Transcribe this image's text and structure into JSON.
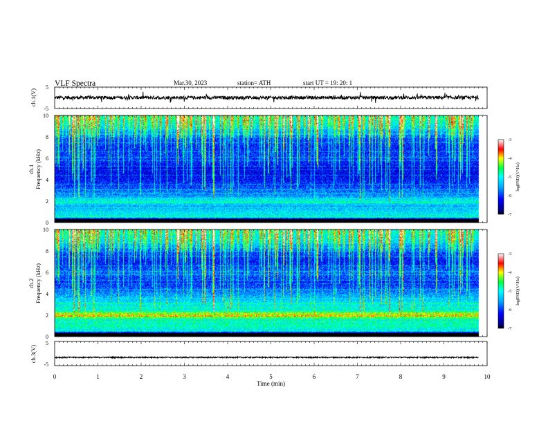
{
  "header": {
    "title": "VLF  Spectra",
    "date": "Mar.30, 2023",
    "station": "station= ATH",
    "start": "start  UT  =    19: 20: 1"
  },
  "chart_data": [
    {
      "id": "ch1-waveform",
      "type": "line",
      "ylabel": "ch.1(V)",
      "ylim": [
        -5,
        5
      ],
      "y_ticks": [
        "5",
        "-5"
      ],
      "x_range_min": [
        0,
        9.8
      ],
      "baseline_v": 0.1,
      "noise_amplitude_v": 0.8,
      "line_color": "#000000"
    },
    {
      "id": "ch1-spectrogram",
      "type": "heatmap",
      "ylabel_channel": "ch.1",
      "ylabel": "Frequency  (kHz)",
      "ylim": [
        0,
        10
      ],
      "y_ticks": [
        "0",
        "2",
        "4",
        "6",
        "8",
        "10"
      ],
      "x_range_min": [
        0,
        9.8
      ],
      "colorbar": {
        "label": "log(PSD)(V²/Hz)",
        "ticks": [
          "-3",
          "-4",
          "-5",
          "-6",
          "-7"
        ],
        "range": [
          -7,
          -3
        ]
      },
      "psd_profile": [
        {
          "f_khz": 0.0,
          "log_psd": -7.0
        },
        {
          "f_khz": 0.3,
          "log_psd": -6.8
        },
        {
          "f_khz": 0.5,
          "log_psd": -5.0
        },
        {
          "f_khz": 1.0,
          "log_psd": -5.2
        },
        {
          "f_khz": 1.5,
          "log_psd": -5.5
        },
        {
          "f_khz": 2.0,
          "log_psd": -5.0
        },
        {
          "f_khz": 2.5,
          "log_psd": -5.6
        },
        {
          "f_khz": 3.0,
          "log_psd": -5.8
        },
        {
          "f_khz": 4.0,
          "log_psd": -6.2
        },
        {
          "f_khz": 5.0,
          "log_psd": -6.3
        },
        {
          "f_khz": 6.0,
          "log_psd": -6.0
        },
        {
          "f_khz": 7.0,
          "log_psd": -6.1
        },
        {
          "f_khz": 8.0,
          "log_psd": -5.9
        },
        {
          "f_khz": 9.0,
          "log_psd": -5.2
        },
        {
          "f_khz": 10.0,
          "log_psd": -4.8
        }
      ]
    },
    {
      "id": "ch2-spectrogram",
      "type": "heatmap",
      "ylabel_channel": "ch.2",
      "ylabel": "Frequency  (kHz)",
      "ylim": [
        0,
        10
      ],
      "y_ticks": [
        "0",
        "2",
        "4",
        "6",
        "8",
        "10"
      ],
      "x_range_min": [
        0,
        9.8
      ],
      "colorbar": {
        "label": "log(PSD)(V²/Hz)",
        "ticks": [
          "-3",
          "-4",
          "-5",
          "-6",
          "-7"
        ],
        "range": [
          -7,
          -3
        ]
      },
      "psd_profile": [
        {
          "f_khz": 0.0,
          "log_psd": -7.0
        },
        {
          "f_khz": 0.3,
          "log_psd": -6.8
        },
        {
          "f_khz": 0.5,
          "log_psd": -5.2
        },
        {
          "f_khz": 1.0,
          "log_psd": -4.8
        },
        {
          "f_khz": 1.5,
          "log_psd": -5.0
        },
        {
          "f_khz": 2.0,
          "log_psd": -4.0
        },
        {
          "f_khz": 2.5,
          "log_psd": -5.0
        },
        {
          "f_khz": 3.0,
          "log_psd": -5.1
        },
        {
          "f_khz": 4.0,
          "log_psd": -5.6
        },
        {
          "f_khz": 5.0,
          "log_psd": -6.1
        },
        {
          "f_khz": 6.0,
          "log_psd": -5.8
        },
        {
          "f_khz": 7.0,
          "log_psd": -6.2
        },
        {
          "f_khz": 8.0,
          "log_psd": -5.9
        },
        {
          "f_khz": 9.0,
          "log_psd": -5.2
        },
        {
          "f_khz": 10.0,
          "log_psd": -4.9
        }
      ]
    },
    {
      "id": "ch3-waveform",
      "type": "line",
      "ylabel": "ch.3(V)",
      "ylim": [
        -5,
        5
      ],
      "y_ticks": [
        "5",
        "-5"
      ],
      "x_range_min": [
        0,
        9.8
      ],
      "baseline_v": -1.6,
      "noise_amplitude_v": 0.25,
      "line_color": "#000000"
    }
  ],
  "x_axis": {
    "label": "Time  (min)",
    "range": [
      0,
      10
    ],
    "ticks": [
      "0",
      "1",
      "2",
      "3",
      "4",
      "5",
      "6",
      "7",
      "8",
      "9",
      "10"
    ]
  }
}
